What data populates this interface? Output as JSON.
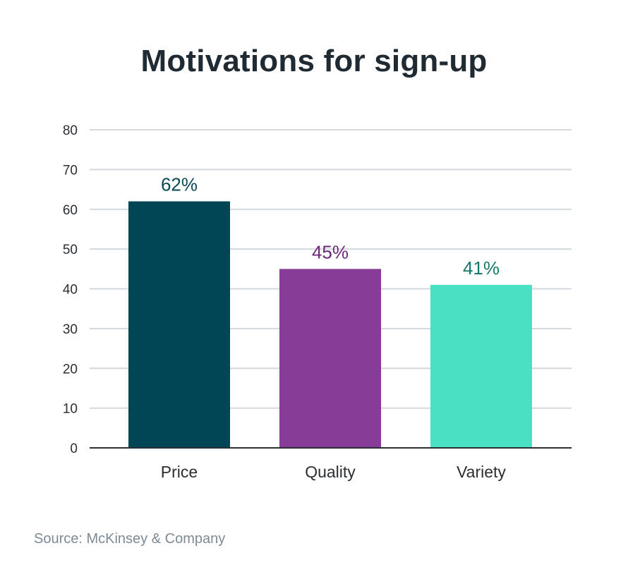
{
  "chart_data": {
    "type": "bar",
    "title": "Motivations for sign-up",
    "categories": [
      "Price",
      "Quality",
      "Variety"
    ],
    "values": [
      62,
      45,
      41
    ],
    "data_labels": [
      "62%",
      "45%",
      "41%"
    ],
    "colors": [
      "#004655",
      "#873c98",
      "#4ae0c4"
    ],
    "label_colors": [
      "#0b4a55",
      "#6a2a78",
      "#137a6c"
    ],
    "ylim": [
      0,
      80
    ],
    "yticks": [
      0,
      10,
      20,
      30,
      40,
      50,
      60,
      70,
      80
    ],
    "xlabel": "",
    "ylabel": "",
    "grid": true,
    "legend": "none"
  },
  "source": "Source: McKinsey & Company"
}
